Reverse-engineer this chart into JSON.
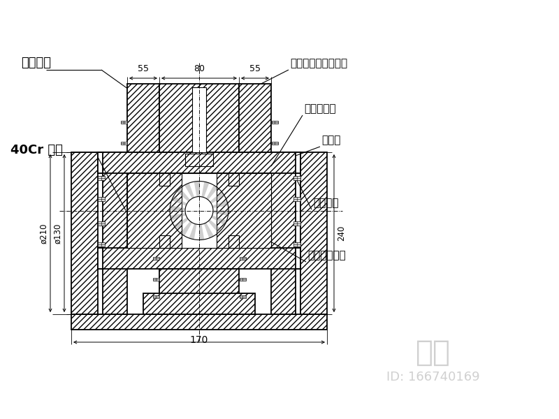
{
  "bg_color": "#ffffff",
  "line_color": "#000000",
  "watermark_color": "#c8c8c8",
  "labels": {
    "bearing_cap": "轴承压盖",
    "pin_shaft": "40Cr 销轴",
    "middle_ear": "中耳板（随摇摆柱）",
    "bearing_loc": "轴承定位套",
    "outer_ear": "外耳板",
    "pin_cover": "销轴盖板",
    "bearing_joint": "向心关节轴承"
  },
  "dims": {
    "d55_left": "55",
    "d80": "80",
    "d55_right": "55",
    "d210": "ø210",
    "d130": "ø130",
    "d240": "240",
    "d170": "170"
  },
  "watermark": "知末",
  "id_text": "ID: 166740169"
}
